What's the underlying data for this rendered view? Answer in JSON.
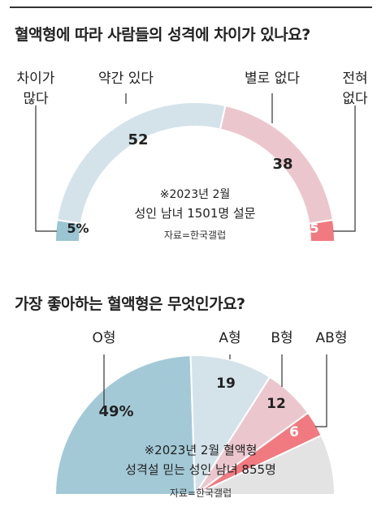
{
  "chart_data": [
    {
      "type": "pie",
      "title": "혈액형에 따라 사람들의 성격에 차이가 있나요?",
      "note_lines": [
        "※2023년 2월",
        "성인 남녀 1501명 설문"
      ],
      "source": "자료=한국갤럽",
      "slices": [
        {
          "label_lines": [
            "차이가",
            "많다"
          ],
          "value": 5,
          "value_label": "5%",
          "color": "#9cc5d3"
        },
        {
          "label_lines": [
            "약간 있다"
          ],
          "value": 52,
          "value_label": "52",
          "color": "#d4e3ea"
        },
        {
          "label_lines": [
            "별로 없다"
          ],
          "value": 38,
          "value_label": "38",
          "color": "#ebc7cd"
        },
        {
          "label_lines": [
            "전혀",
            "없다"
          ],
          "value": 5,
          "value_label": "5",
          "color": "#f07a80"
        }
      ]
    },
    {
      "type": "pie",
      "title": "가장 좋아하는 혈액형은 무엇인가요?",
      "note_lines": [
        "※2023년 2월 혈액형",
        "성격설 믿는 성인 남녀 855명"
      ],
      "source": "자료=한국갤럽",
      "slices": [
        {
          "label_lines": [
            "O형"
          ],
          "value": 49,
          "value_label": "49%",
          "color": "#a3c9d6"
        },
        {
          "label_lines": [
            "A형"
          ],
          "value": 19,
          "value_label": "19",
          "color": "#d4e3ea"
        },
        {
          "label_lines": [
            "B형"
          ],
          "value": 12,
          "value_label": "12",
          "color": "#ebc7cd"
        },
        {
          "label_lines": [
            "AB형"
          ],
          "value": 6,
          "value_label": "6",
          "color": "#f07a80"
        },
        {
          "label_lines": [],
          "value": 14,
          "value_label": "",
          "color": "#e3e3e3"
        }
      ]
    }
  ]
}
